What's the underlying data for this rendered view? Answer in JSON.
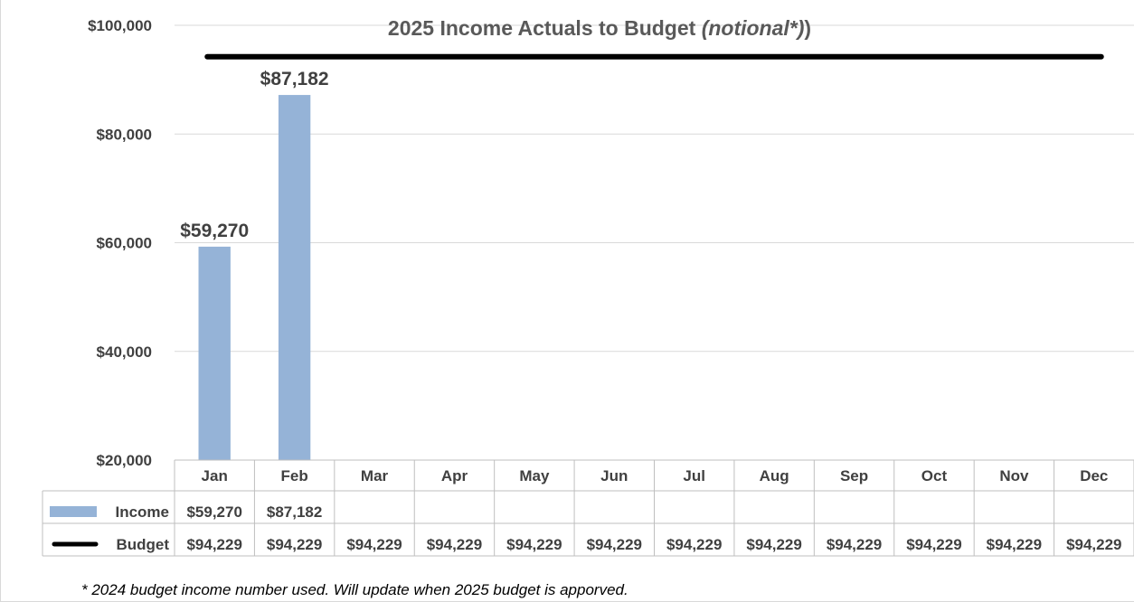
{
  "chart_data": {
    "type": "bar",
    "title": "2025 Income Actuals to Budget ",
    "title_emphasis": "(notional*)",
    "categories": [
      "Jan",
      "Feb",
      "Mar",
      "Apr",
      "May",
      "Jun",
      "Jul",
      "Aug",
      "Sep",
      "Oct",
      "Nov",
      "Dec"
    ],
    "series": [
      {
        "name": "Income",
        "kind": "bar",
        "color": "#95b3d7",
        "values": [
          59270,
          87182,
          null,
          null,
          null,
          null,
          null,
          null,
          null,
          null,
          null,
          null
        ],
        "labels": [
          "$59,270",
          "$87,182",
          "",
          "",
          "",
          "",
          "",
          "",
          "",
          "",
          "",
          ""
        ]
      },
      {
        "name": "Budget",
        "kind": "line",
        "color": "#000000",
        "values": [
          94229,
          94229,
          94229,
          94229,
          94229,
          94229,
          94229,
          94229,
          94229,
          94229,
          94229,
          94229
        ],
        "labels": [
          "$94,229",
          "$94,229",
          "$94,229",
          "$94,229",
          "$94,229",
          "$94,229",
          "$94,229",
          "$94,229",
          "$94,229",
          "$94,229",
          "$94,229",
          "$94,229"
        ]
      }
    ],
    "bar_data_labels": [
      "$59,270",
      "$87,182"
    ],
    "ylim": [
      20000,
      100000
    ],
    "yticks": [
      20000,
      40000,
      60000,
      80000,
      100000
    ],
    "ytick_labels": [
      "$20,000",
      "$40,000",
      "$60,000",
      "$80,000",
      "$100,000"
    ],
    "grid": true,
    "data_table": true,
    "footnote": "* 2024 budget income number used. Will update when 2025 budget is apporved."
  }
}
